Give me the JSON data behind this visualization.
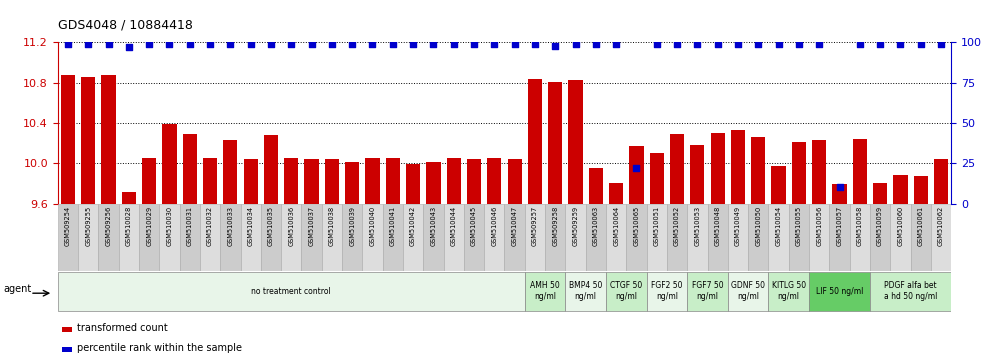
{
  "title": "GDS4048 / 10884418",
  "categories": [
    "GSM509254",
    "GSM509255",
    "GSM509256",
    "GSM510028",
    "GSM510029",
    "GSM510030",
    "GSM510031",
    "GSM510032",
    "GSM510033",
    "GSM510034",
    "GSM510035",
    "GSM510036",
    "GSM510037",
    "GSM510038",
    "GSM510039",
    "GSM510040",
    "GSM510041",
    "GSM510042",
    "GSM510043",
    "GSM510044",
    "GSM510045",
    "GSM510046",
    "GSM510047",
    "GSM509257",
    "GSM509258",
    "GSM509259",
    "GSM510063",
    "GSM510064",
    "GSM510065",
    "GSM510051",
    "GSM510052",
    "GSM510053",
    "GSM510048",
    "GSM510049",
    "GSM510050",
    "GSM510054",
    "GSM510055",
    "GSM510056",
    "GSM510057",
    "GSM510058",
    "GSM510059",
    "GSM510060",
    "GSM510061",
    "GSM510062"
  ],
  "bar_values": [
    10.88,
    10.86,
    10.88,
    9.71,
    10.05,
    10.39,
    10.29,
    10.05,
    10.23,
    10.04,
    10.28,
    10.05,
    10.04,
    10.04,
    10.01,
    10.05,
    10.05,
    9.99,
    10.01,
    10.05,
    10.04,
    10.05,
    10.04,
    10.84,
    10.81,
    10.83,
    9.95,
    9.8,
    10.17,
    10.1,
    10.29,
    10.18,
    10.3,
    10.33,
    10.26,
    9.97,
    10.21,
    10.23,
    9.79,
    10.24,
    9.8,
    9.88,
    9.87,
    10.04
  ],
  "percentile_values": [
    99,
    99,
    99,
    97,
    99,
    99,
    99,
    99,
    99,
    99,
    99,
    99,
    99,
    99,
    99,
    99,
    99,
    99,
    99,
    99,
    99,
    99,
    99,
    99,
    98,
    99,
    99,
    99,
    22,
    99,
    99,
    99,
    99,
    99,
    99,
    99,
    99,
    99,
    10,
    99,
    99,
    99,
    99,
    99
  ],
  "ylim_left": [
    9.6,
    11.2
  ],
  "ylim_right": [
    0,
    100
  ],
  "bar_color": "#cc0000",
  "dot_color": "#0000cc",
  "yticks_left": [
    9.6,
    10.0,
    10.4,
    10.8,
    11.2
  ],
  "yticks_right": [
    0,
    25,
    50,
    75,
    100
  ],
  "agent_groups": [
    {
      "label": "no treatment control",
      "start": 0,
      "end": 23,
      "color": "#e8f5e9"
    },
    {
      "label": "AMH 50\nng/ml",
      "start": 23,
      "end": 25,
      "color": "#c8eec8"
    },
    {
      "label": "BMP4 50\nng/ml",
      "start": 25,
      "end": 27,
      "color": "#e8f5e9"
    },
    {
      "label": "CTGF 50\nng/ml",
      "start": 27,
      "end": 29,
      "color": "#c8eec8"
    },
    {
      "label": "FGF2 50\nng/ml",
      "start": 29,
      "end": 31,
      "color": "#e8f5e9"
    },
    {
      "label": "FGF7 50\nng/ml",
      "start": 31,
      "end": 33,
      "color": "#c8eec8"
    },
    {
      "label": "GDNF 50\nng/ml",
      "start": 33,
      "end": 35,
      "color": "#e8f5e9"
    },
    {
      "label": "KITLG 50\nng/ml",
      "start": 35,
      "end": 37,
      "color": "#c8eec8"
    },
    {
      "label": "LIF 50 ng/ml",
      "start": 37,
      "end": 40,
      "color": "#66cc66"
    },
    {
      "label": "PDGF alfa bet\na hd 50 ng/ml",
      "start": 40,
      "end": 44,
      "color": "#c8eec8"
    }
  ],
  "legend_bar_label": "transformed count",
  "legend_dot_label": "percentile rank within the sample",
  "agent_label": "agent",
  "bg_color": "#ffffff",
  "plot_bg_color": "#ffffff",
  "grid_color": "#000000",
  "xlabel_box_color1": "#cccccc",
  "xlabel_box_color2": "#dddddd"
}
